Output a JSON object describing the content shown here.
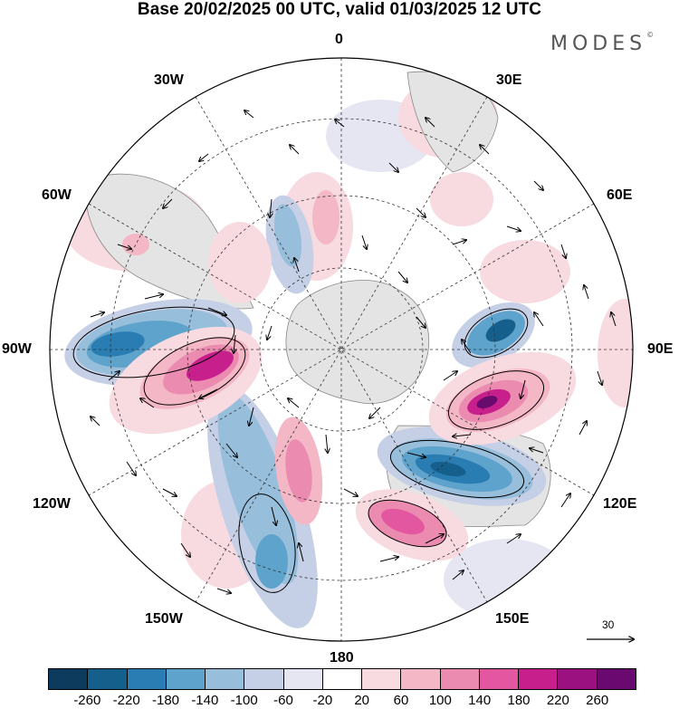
{
  "title": "Base 20/02/2025 00 UTC, valid 01/03/2025 12 UTC",
  "logo": "MODES",
  "logo_mark": "©",
  "longitude_labels": {
    "lon_0": "0",
    "lon_30e": "30E",
    "lon_60e": "60E",
    "lon_90e": "90E",
    "lon_120e": "120E",
    "lon_150e": "150E",
    "lon_180": "180",
    "lon_150w": "150W",
    "lon_120w": "120W",
    "lon_90w": "90W",
    "lon_60w": "60W",
    "lon_30w": "30W"
  },
  "vector_reference": "30",
  "colorbar": {
    "colors": [
      "#0d3b5e",
      "#155f8c",
      "#2a7db3",
      "#5ea3cb",
      "#97bedb",
      "#c5cfe6",
      "#e6e6f2",
      "#ffffff",
      "#f8dbe0",
      "#f3b7c6",
      "#ec8bb0",
      "#e2579f",
      "#c71f8c",
      "#9b117f",
      "#6a0a70"
    ],
    "ticks": [
      "-260",
      "-220",
      "-180",
      "-140",
      "-100",
      "-60",
      "-20",
      "20",
      "60",
      "100",
      "140",
      "180",
      "220",
      "260"
    ]
  }
}
